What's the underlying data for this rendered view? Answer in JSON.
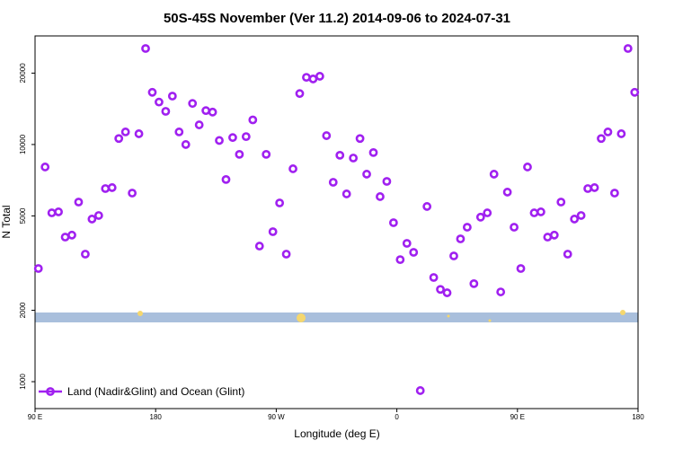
{
  "chart_data": {
    "type": "scatter",
    "title": "50S-45S November (Ver 11.2)   2014-09-06 to 2024-07-31",
    "x_label": "Longitude (deg E)",
    "y_label": "N Total",
    "log_y": true,
    "legend_position": "bottom left",
    "xlim": [
      90,
      540
    ],
    "ylim": [
      770,
      28700
    ],
    "xticks": [
      {
        "value": 90,
        "label": "90 E"
      },
      180,
      {
        "value": 270,
        "label": "90 W"
      },
      {
        "value": 360,
        "label": "0"
      },
      {
        "value": 450,
        "label": "90 E"
      },
      {
        "value": 540,
        "label": "180"
      }
    ],
    "yticks": [
      1000,
      2000,
      5000,
      10000,
      20000
    ],
    "series": [
      {
        "name": "Land (Nadir&Glint) and Ocean (Glint)",
        "color": "#a020f0",
        "x": [
          92.5,
          97.5,
          102.5,
          107.5,
          112.5,
          117.5,
          122.5,
          127.5,
          132.5,
          137.5,
          142.5,
          147.5,
          152.5,
          157.5,
          162.5,
          167.5,
          172.5,
          177.5,
          182.5,
          187.5,
          192.5,
          197.5,
          202.5,
          207.5,
          212.5,
          217.5,
          222.5,
          227.5,
          232.5,
          237.5,
          242.5,
          247.5,
          252.5,
          257.5,
          262.5,
          267.5,
          272.5,
          277.5,
          282.5,
          287.5,
          292.5,
          297.5,
          302.5,
          307.5,
          312.5,
          317.5,
          322.5,
          327.5,
          332.5,
          337.5,
          342.5,
          347.5,
          352.5,
          357.5,
          362.5,
          367.5,
          372.5,
          377.5,
          382.5,
          387.5,
          392.5,
          397.5,
          402.5,
          407.5,
          412.5,
          417.5,
          422.5,
          427.5,
          432.5,
          437.5,
          442.5,
          447.5,
          452.5,
          457.5,
          462.5,
          467.5,
          472.5,
          477.5,
          482.5,
          487.5,
          492.5,
          497.5,
          502.5,
          507.5,
          512.5,
          517.5,
          522.5,
          527.5,
          532.5,
          537.5
        ],
        "values": [
          3000,
          8040,
          5150,
          5200,
          4070,
          4150,
          5720,
          3450,
          4850,
          5020,
          6520,
          6580,
          10600,
          11300,
          6240,
          11100,
          25400,
          16600,
          15100,
          13800,
          16000,
          11300,
          10000,
          14900,
          12100,
          13900,
          13700,
          10400,
          7120,
          10700,
          9090,
          10800,
          12700,
          3730,
          9090,
          4290,
          5670,
          3450,
          7900,
          16400,
          19200,
          18900,
          19400,
          10900,
          6930,
          9010,
          6190,
          8770,
          10600,
          7500,
          9250,
          6030,
          6990,
          4680,
          3270,
          3830,
          3510,
          917,
          5480,
          2750,
          2450,
          2370,
          3390,
          4000,
          4480,
          2590,
          4940,
          5150,
          7500,
          2390,
          6300,
          4480,
          3000,
          8040,
          5150,
          5200,
          4070,
          4150,
          5720,
          3450,
          4850,
          5020,
          6520,
          6580,
          10600,
          11300,
          6240,
          11100,
          25400,
          16600
        ]
      }
    ]
  }
}
